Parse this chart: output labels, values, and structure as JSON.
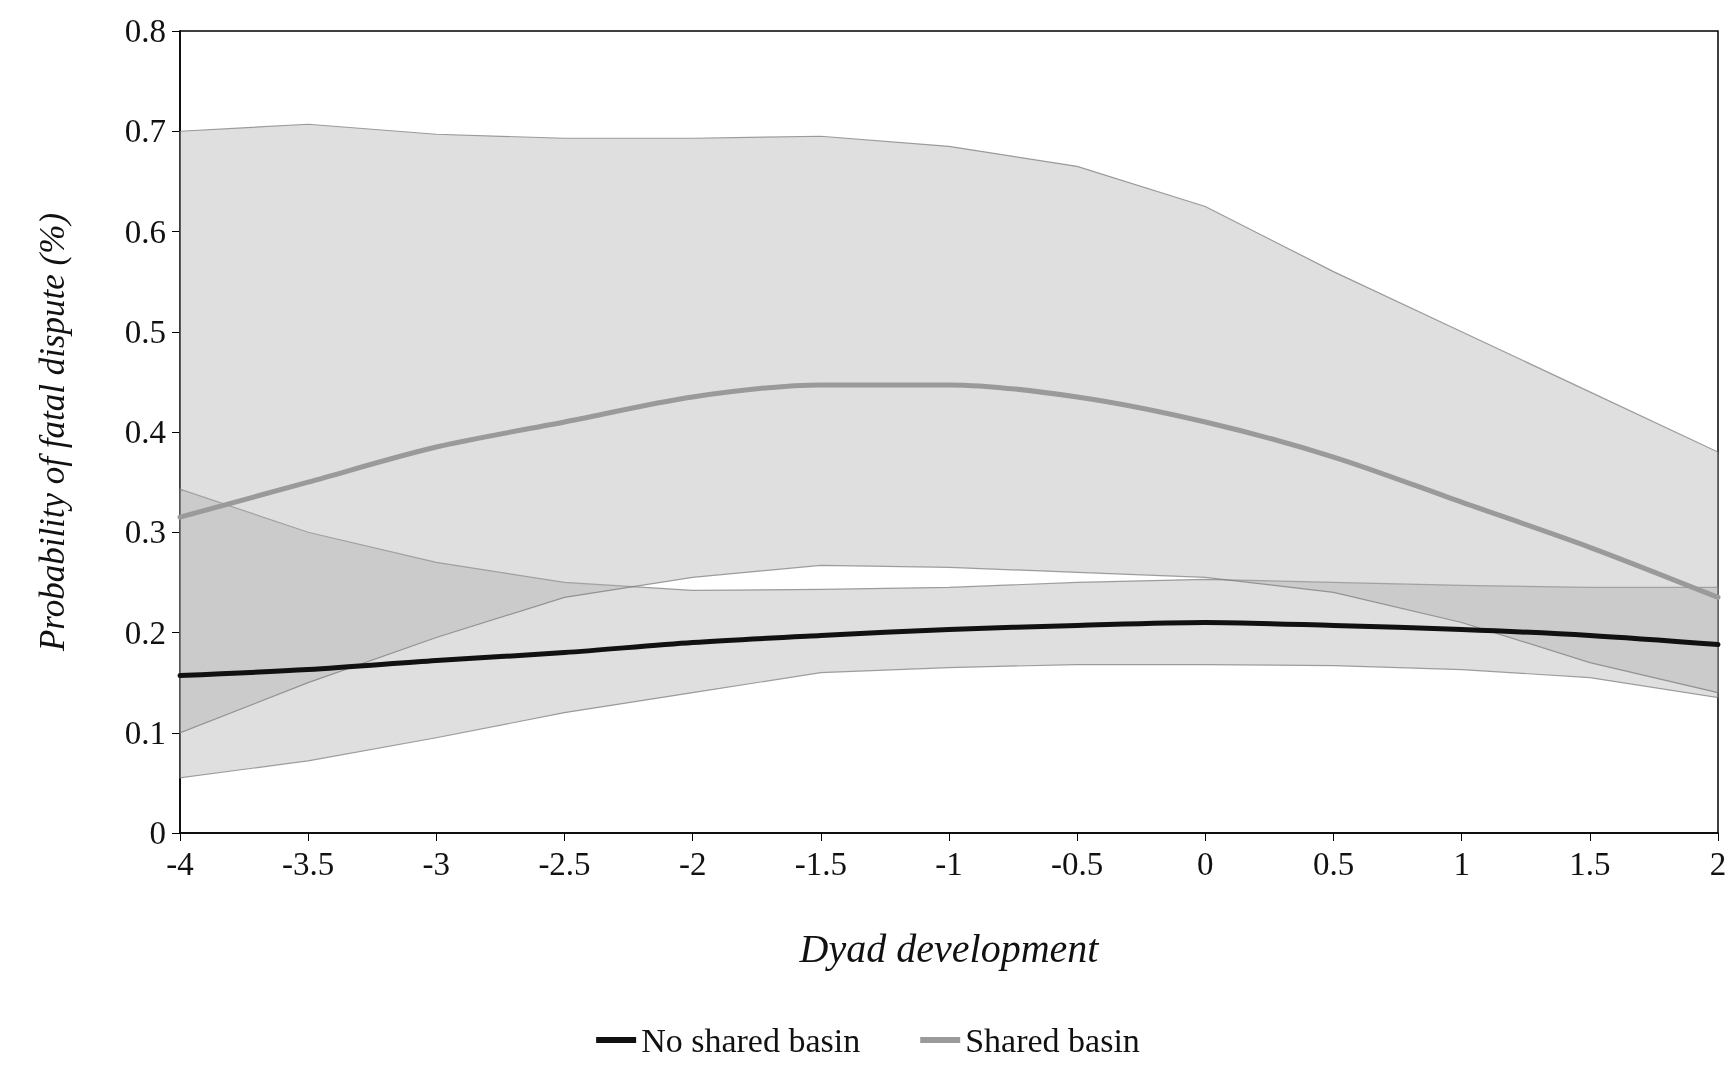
{
  "chart_data": {
    "type": "line",
    "xlabel": "Dyad development",
    "ylabel": "Probability of fatal dispute (%)",
    "x": [
      -4,
      -3.5,
      -3,
      -2.5,
      -2,
      -1.5,
      -1,
      -0.5,
      0,
      0.5,
      1,
      1.5,
      2
    ],
    "series": [
      {
        "name": "No shared basin",
        "color": "#111111",
        "values": [
          0.157,
          0.163,
          0.172,
          0.18,
          0.19,
          0.197,
          0.203,
          0.207,
          0.21,
          0.207,
          0.203,
          0.197,
          0.188
        ],
        "lower": [
          0.055,
          0.072,
          0.095,
          0.12,
          0.14,
          0.16,
          0.165,
          0.168,
          0.168,
          0.167,
          0.163,
          0.155,
          0.135
        ],
        "upper": [
          0.343,
          0.3,
          0.27,
          0.25,
          0.242,
          0.243,
          0.245,
          0.25,
          0.253,
          0.25,
          0.247,
          0.245,
          0.245
        ]
      },
      {
        "name": "Shared basin",
        "color": "#9a9a9a",
        "values": [
          0.315,
          0.35,
          0.385,
          0.41,
          0.435,
          0.447,
          0.447,
          0.435,
          0.41,
          0.375,
          0.33,
          0.285,
          0.235
        ],
        "lower": [
          0.1,
          0.15,
          0.195,
          0.235,
          0.255,
          0.267,
          0.265,
          0.26,
          0.255,
          0.24,
          0.21,
          0.17,
          0.14
        ],
        "upper": [
          0.7,
          0.707,
          0.697,
          0.693,
          0.693,
          0.695,
          0.685,
          0.665,
          0.625,
          0.56,
          0.5,
          0.44,
          0.38
        ]
      }
    ],
    "xlim": [
      -4,
      2
    ],
    "xticks": [
      -4,
      -3.5,
      -3,
      -2.5,
      -2,
      -1.5,
      -1,
      -0.5,
      0,
      0.5,
      1,
      1.5,
      2
    ],
    "ylim": [
      0,
      0.8
    ],
    "yticks": [
      0,
      0.1,
      0.2,
      0.3,
      0.4,
      0.5,
      0.6,
      0.7,
      0.8
    ],
    "legend": "bottom",
    "marker": "none",
    "line_style": "solid"
  }
}
